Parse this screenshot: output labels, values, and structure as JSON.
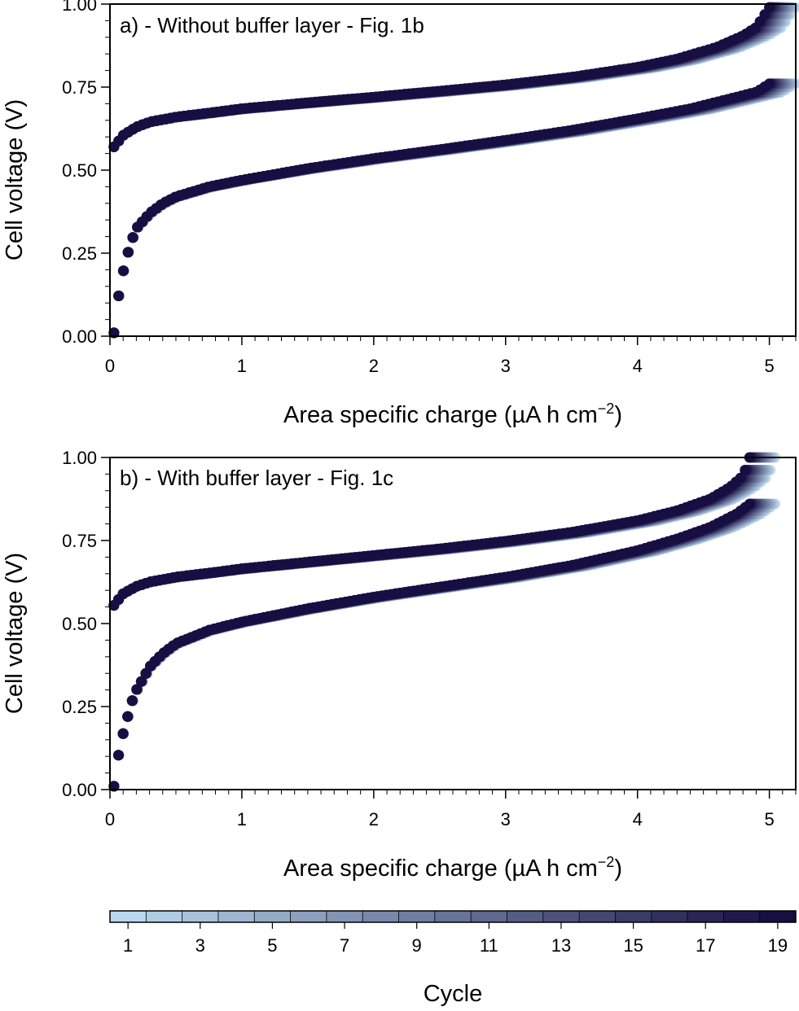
{
  "chart_data": [
    {
      "type": "scatter",
      "title": "a) - Without buffer layer - Fig. 1b",
      "xlabel": "Area specific charge (µA h cm",
      "xlabel_sup": "−2",
      "xlabel_close": ")",
      "ylabel": "Cell voltage (V)",
      "xlim": [
        0,
        5.2
      ],
      "ylim": [
        0,
        1.0
      ],
      "xticks": [
        "0",
        "1",
        "2",
        "3",
        "4",
        "5"
      ],
      "yticks": [
        "0.00",
        "0.25",
        "0.50",
        "0.75",
        "1.00"
      ],
      "grid": false,
      "series": [
        {
          "role": "charge",
          "x": [
            0.03,
            0.1,
            0.2,
            0.3,
            0.5,
            0.75,
            1.0,
            1.5,
            2.0,
            2.5,
            3.0,
            3.5,
            4.0,
            4.3,
            4.6,
            4.8,
            4.9,
            5.0
          ],
          "y": [
            0.57,
            0.605,
            0.63,
            0.645,
            0.66,
            0.672,
            0.685,
            0.703,
            0.72,
            0.738,
            0.757,
            0.78,
            0.81,
            0.835,
            0.87,
            0.905,
            0.93,
            0.99
          ]
        },
        {
          "role": "discharge",
          "x": [
            0.03,
            0.05,
            0.08,
            0.12,
            0.16,
            0.2,
            0.3,
            0.4,
            0.5,
            0.75,
            1.0,
            1.5,
            2.0,
            2.5,
            3.0,
            3.5,
            4.0,
            4.4,
            4.7,
            4.9,
            5.0
          ],
          "y": [
            0.01,
            0.08,
            0.16,
            0.23,
            0.285,
            0.325,
            0.37,
            0.4,
            0.42,
            0.45,
            0.47,
            0.505,
            0.535,
            0.562,
            0.59,
            0.62,
            0.655,
            0.685,
            0.715,
            0.735,
            0.76
          ]
        }
      ],
      "colorbar_label": "Cycle"
    },
    {
      "type": "scatter",
      "title": "b) - With buffer layer - Fig. 1c",
      "xlabel": "Area specific charge (µA h cm",
      "xlabel_sup": "−2",
      "xlabel_close": ")",
      "ylabel": "Cell voltage (V)",
      "xlim": [
        0,
        5.2
      ],
      "ylim": [
        0,
        1.0
      ],
      "xticks": [
        "0",
        "1",
        "2",
        "3",
        "4",
        "5"
      ],
      "yticks": [
        "0.00",
        "0.25",
        "0.50",
        "0.75",
        "1.00"
      ],
      "grid": false,
      "series": [
        {
          "role": "charge",
          "x": [
            0.03,
            0.1,
            0.2,
            0.3,
            0.5,
            0.75,
            1.0,
            1.5,
            2.0,
            2.5,
            3.0,
            3.5,
            4.0,
            4.3,
            4.55,
            4.7,
            4.8,
            4.85
          ],
          "y": [
            0.555,
            0.59,
            0.612,
            0.625,
            0.64,
            0.652,
            0.665,
            0.685,
            0.705,
            0.725,
            0.748,
            0.775,
            0.81,
            0.84,
            0.875,
            0.91,
            0.945,
            1.0
          ]
        },
        {
          "role": "discharge",
          "x": [
            0.03,
            0.05,
            0.08,
            0.12,
            0.16,
            0.2,
            0.3,
            0.4,
            0.5,
            0.75,
            1.0,
            1.5,
            2.0,
            2.5,
            3.0,
            3.5,
            4.0,
            4.3,
            4.55,
            4.75,
            4.85
          ],
          "y": [
            0.01,
            0.07,
            0.14,
            0.2,
            0.26,
            0.3,
            0.37,
            0.41,
            0.44,
            0.48,
            0.505,
            0.545,
            0.58,
            0.61,
            0.64,
            0.675,
            0.72,
            0.755,
            0.79,
            0.83,
            0.86
          ]
        }
      ]
    }
  ],
  "colorbar": {
    "label": "Cycle",
    "tick_labels": [
      "1",
      "3",
      "5",
      "7",
      "9",
      "11",
      "13",
      "15",
      "17",
      "19"
    ],
    "cycle_min": 1,
    "cycle_max": 19,
    "color_light": "#b9d7ee",
    "color_dark": "#170f42"
  }
}
